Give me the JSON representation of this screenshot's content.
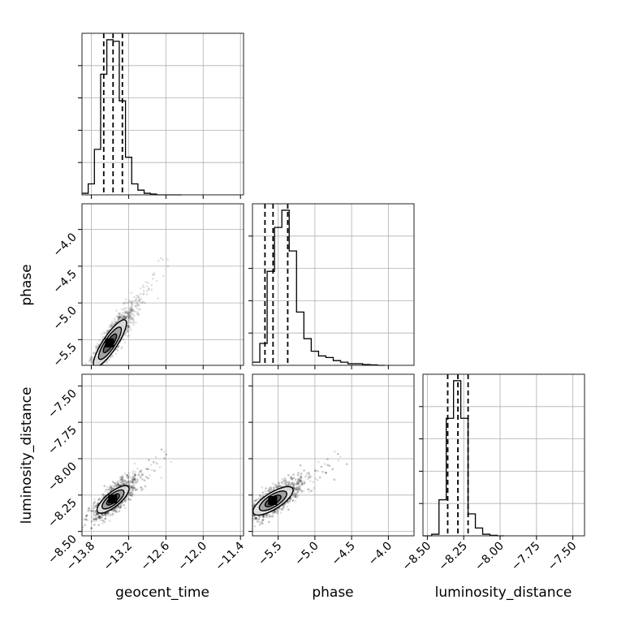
{
  "chart_data": {
    "type": "corner",
    "parameters": [
      {
        "name": "geocent_time",
        "label": "geocent_time",
        "range": [
          -13.95,
          -11.35
        ],
        "ticks": [
          -13.8,
          -13.2,
          -12.6,
          -12.0,
          -11.4
        ],
        "tick_labels": [
          "−13.8",
          "−13.2",
          "−12.6",
          "−12.0",
          "−11.4"
        ]
      },
      {
        "name": "phase",
        "label": "phase",
        "range": [
          -5.85,
          -3.65
        ],
        "ticks": [
          -5.5,
          -5.0,
          -4.5,
          -4.0
        ],
        "tick_labels": [
          "−5.5",
          "−5.0",
          "−4.5",
          "−4.0"
        ]
      },
      {
        "name": "luminosity_distance",
        "label": "luminosity_distance",
        "range": [
          -8.53,
          -7.42
        ],
        "ticks": [
          -8.5,
          -8.25,
          -8.0,
          -7.75,
          -7.5
        ],
        "tick_labels": [
          "−8.50",
          "−8.25",
          "−8.00",
          "−7.75",
          "−7.50"
        ]
      }
    ],
    "histograms": [
      {
        "parameter": "geocent_time",
        "bin_edges": [
          -13.95,
          -13.85,
          -13.75,
          -13.65,
          -13.55,
          -13.45,
          -13.35,
          -13.25,
          -13.15,
          -13.05,
          -12.95,
          -12.85,
          -12.75,
          -12.65,
          -12.55,
          -12.45,
          -12.35
        ],
        "counts": [
          0.01,
          0.07,
          0.29,
          0.77,
          0.99,
          0.98,
          0.6,
          0.24,
          0.07,
          0.03,
          0.01,
          0.005,
          0.0,
          0.0,
          0.0,
          0.0
        ],
        "quantiles": [
          -13.6,
          -13.45,
          -13.3
        ]
      },
      {
        "parameter": "phase",
        "bin_edges": [
          -5.85,
          -5.75,
          -5.65,
          -5.55,
          -5.45,
          -5.35,
          -5.25,
          -5.15,
          -5.05,
          -4.95,
          -4.85,
          -4.75,
          -4.65,
          -4.55,
          -4.45,
          -4.35,
          -4.25,
          -4.15,
          -4.05
        ],
        "counts": [
          0.02,
          0.14,
          0.6,
          0.88,
          0.99,
          0.73,
          0.34,
          0.17,
          0.09,
          0.06,
          0.05,
          0.03,
          0.02,
          0.01,
          0.01,
          0.005,
          0.003,
          0.0
        ],
        "quantiles": [
          -5.68,
          -5.57,
          -5.37
        ]
      },
      {
        "parameter": "luminosity_distance",
        "bin_edges": [
          -8.53,
          -8.47,
          -8.42,
          -8.37,
          -8.32,
          -8.27,
          -8.22,
          -8.17,
          -8.12,
          -8.07,
          -8.02,
          -7.97
        ],
        "counts": [
          0.0,
          0.01,
          0.23,
          0.75,
          0.99,
          0.75,
          0.14,
          0.05,
          0.01,
          0.003,
          0.0
        ],
        "quantiles": [
          -8.36,
          -8.29,
          -8.22
        ]
      }
    ],
    "scatter_panels": [
      {
        "x": "geocent_time",
        "y": "phase",
        "center": [
          -13.5,
          -5.55
        ],
        "spread": [
          0.13,
          0.12
        ],
        "slope": 1.28,
        "extent_t": [
          -0.6,
          1.9
        ]
      },
      {
        "x": "geocent_time",
        "y": "luminosity_distance",
        "center": [
          -13.45,
          -8.28
        ],
        "spread": [
          0.13,
          0.07
        ],
        "slope": 0.35,
        "extent_t": [
          -0.8,
          1.5
        ]
      },
      {
        "x": "phase",
        "y": "luminosity_distance",
        "center": [
          -5.57,
          -8.29
        ],
        "spread": [
          0.14,
          0.07
        ],
        "slope": 0.32,
        "extent_t": [
          -0.6,
          1.9
        ]
      }
    ],
    "grid": true,
    "colors": {
      "hist": "#000000",
      "points": "#000000",
      "grid": "#b0b0b0",
      "contour_fill_dark": "#555555",
      "contour_fill_mid": "#9a9a9a",
      "contour_fill_light": "#e8e8e8"
    }
  }
}
